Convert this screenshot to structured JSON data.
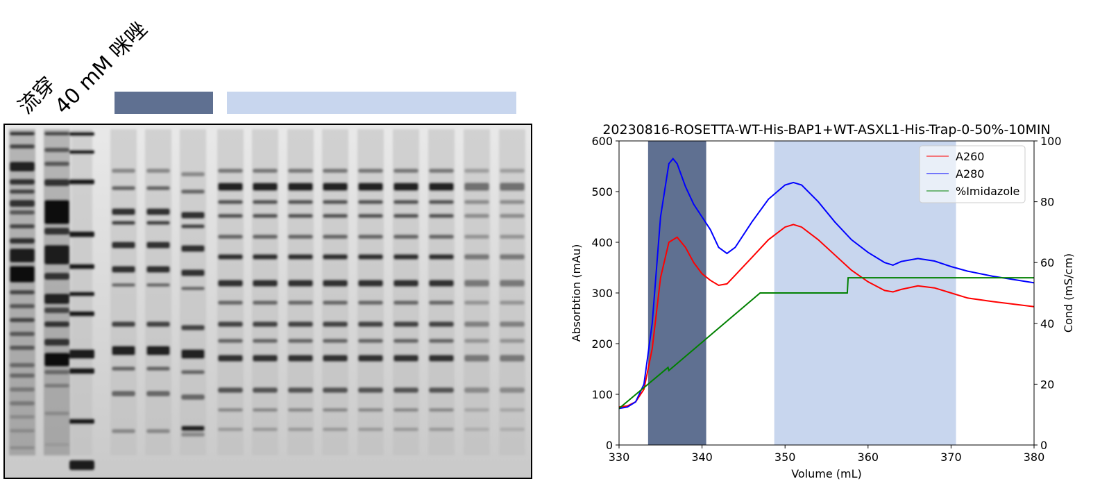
{
  "gel": {
    "lane_labels": [
      "流穿",
      "40 mM 咪唑"
    ],
    "colors": {
      "dark_bar": "#5f7091",
      "light_bar": "#c8d6ee"
    }
  },
  "chart_data": {
    "type": "line",
    "title": "20230816-ROSETTA-WT-His-BAP1+WT-ASXL1-His-Trap-0-50%-10MIN",
    "xlabel": "Volume (mL)",
    "ylabel": "Absorbtion (mAu)",
    "y2label": "Cond (mS/cm)",
    "xlim": [
      330,
      380
    ],
    "ylim": [
      0,
      600
    ],
    "y2lim": [
      0,
      100
    ],
    "xticks": [
      "330",
      "340",
      "350",
      "360",
      "370",
      "380"
    ],
    "yticks": [
      "0",
      "100",
      "200",
      "300",
      "400",
      "500",
      "600"
    ],
    "y2ticks": [
      "0",
      "20",
      "40",
      "60",
      "80",
      "100"
    ],
    "legend_position": "top-right",
    "shaded_regions": [
      {
        "x": [
          333.5,
          340.5
        ],
        "color": "#5f7091"
      },
      {
        "x": [
          348.7,
          370.6
        ],
        "color": "#c8d6ee"
      }
    ],
    "series": [
      {
        "name": "A260",
        "color": "#ff0000",
        "axis": "left",
        "x": [
          330,
          331,
          332,
          333,
          334,
          335,
          336,
          337,
          338,
          339,
          340,
          341,
          342,
          343,
          344,
          346,
          348,
          350,
          351,
          352,
          354,
          356,
          358,
          360,
          362,
          363,
          364,
          366,
          368,
          370,
          372,
          375,
          380
        ],
        "values": [
          75,
          77,
          85,
          110,
          190,
          330,
          400,
          410,
          390,
          360,
          338,
          325,
          315,
          318,
          335,
          370,
          405,
          430,
          435,
          430,
          405,
          375,
          345,
          322,
          305,
          302,
          307,
          314,
          310,
          300,
          290,
          283,
          273
        ]
      },
      {
        "name": "A280",
        "color": "#0000ff",
        "axis": "left",
        "x": [
          330,
          331,
          332,
          333,
          334,
          335,
          336,
          336.5,
          337,
          338,
          339,
          340,
          341,
          342,
          343,
          344,
          346,
          348,
          350,
          351,
          352,
          354,
          356,
          358,
          360,
          362,
          363,
          364,
          366,
          368,
          370,
          372,
          375,
          380
        ],
        "values": [
          72,
          75,
          85,
          120,
          240,
          450,
          555,
          565,
          555,
          510,
          475,
          450,
          425,
          390,
          378,
          390,
          440,
          485,
          513,
          518,
          513,
          480,
          440,
          405,
          380,
          360,
          355,
          362,
          368,
          363,
          352,
          343,
          333,
          320
        ]
      },
      {
        "name": "%Imidazole",
        "color": "#008000",
        "axis": "right",
        "x": [
          330,
          335.9,
          336,
          347,
          357.5,
          357.6,
          380
        ],
        "values": [
          12,
          25.5,
          24.5,
          50,
          50,
          55,
          55
        ]
      }
    ]
  }
}
